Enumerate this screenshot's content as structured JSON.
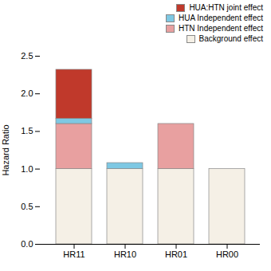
{
  "chart_data": {
    "type": "bar",
    "stacked": true,
    "legend": "upper right",
    "ylabel": "Hazard Ratio",
    "categories": [
      "HR11",
      "HR10",
      "HR01",
      "HR00"
    ],
    "series": [
      {
        "name": "Background effect",
        "color": "#f5f0e6",
        "values": [
          1.0,
          1.0,
          1.0,
          1.0
        ]
      },
      {
        "name": "HTN Independent effect",
        "color": "#e8a0a0",
        "values": [
          0.6,
          0.0,
          0.6,
          0.0
        ]
      },
      {
        "name": "HUA Independent effect",
        "color": "#7ec8e3",
        "values": [
          0.07,
          0.08,
          0.0,
          0.0
        ]
      },
      {
        "name": "HUA:HTN joint effect",
        "color": "#c0392b",
        "values": [
          0.65,
          0.0,
          0.0,
          0.0
        ]
      }
    ],
    "ylim": [
      0.0,
      2.5
    ],
    "yticks": [
      {
        "value": 0.0,
        "label": "0.0"
      },
      0.5,
      {
        "value": 1.0,
        "label": "1.0"
      },
      1.5,
      {
        "value": 2.0,
        "label": "2.0"
      },
      2.5
    ]
  }
}
